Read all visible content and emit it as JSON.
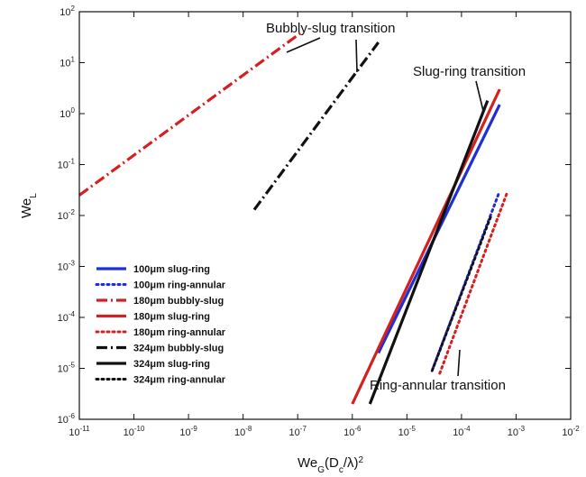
{
  "chart_data": {
    "type": "line",
    "xlabel": "We_G(D_c/λ)^2",
    "ylabel": "We_L",
    "x_scale": "log",
    "y_scale": "log",
    "xlim": [
      1e-11,
      0.01
    ],
    "ylim": [
      1e-06,
      100
    ],
    "x_ticks": [
      {
        "value": 1e-11,
        "base": "10",
        "exp": "-11"
      },
      {
        "value": 1e-10,
        "base": "10",
        "exp": "-10"
      },
      {
        "value": 1e-09,
        "base": "10",
        "exp": "-9"
      },
      {
        "value": 1e-08,
        "base": "10",
        "exp": "-8"
      },
      {
        "value": 1e-07,
        "base": "10",
        "exp": "-7"
      },
      {
        "value": 1e-06,
        "base": "10",
        "exp": "-6"
      },
      {
        "value": 1e-05,
        "base": "10",
        "exp": "-5"
      },
      {
        "value": 0.0001,
        "base": "10",
        "exp": "-4"
      },
      {
        "value": 0.001,
        "base": "10",
        "exp": "-3"
      },
      {
        "value": 0.01,
        "base": "10",
        "exp": "-2"
      }
    ],
    "y_ticks": [
      {
        "value": 1e-06,
        "base": "10",
        "exp": "-6"
      },
      {
        "value": 1e-05,
        "base": "10",
        "exp": "-5"
      },
      {
        "value": 0.0001,
        "base": "10",
        "exp": "-4"
      },
      {
        "value": 0.001,
        "base": "10",
        "exp": "-3"
      },
      {
        "value": 0.01,
        "base": "10",
        "exp": "-2"
      },
      {
        "value": 0.1,
        "base": "10",
        "exp": "-1"
      },
      {
        "value": 1,
        "base": "10",
        "exp": "0"
      },
      {
        "value": 10,
        "base": "10",
        "exp": "1"
      },
      {
        "value": 100,
        "base": "10",
        "exp": "2"
      }
    ],
    "grid": false,
    "legend_position": "bottom-left",
    "series": [
      {
        "name": "100μm slug-ring",
        "color": "#1f2fd6",
        "dash": "solid",
        "points": [
          [
            3e-06,
            2e-05
          ],
          [
            0.0005,
            1.5
          ]
        ]
      },
      {
        "name": "100μm ring-annular",
        "color": "#1f2fd6",
        "dash": "dot",
        "points": [
          [
            3e-05,
            1e-05
          ],
          [
            0.0005,
            0.03
          ]
        ]
      },
      {
        "name": "180μm bubbly-slug",
        "color": "#d42020",
        "dash": "dashdot",
        "points": [
          [
            1e-11,
            0.025
          ],
          [
            1.2e-07,
            40
          ]
        ]
      },
      {
        "name": "180μm slug-ring",
        "color": "#d42020",
        "dash": "solid",
        "points": [
          [
            1e-06,
            2e-06
          ],
          [
            0.0005,
            3
          ]
        ]
      },
      {
        "name": "180μm ring-annular",
        "color": "#d42020",
        "dash": "dot",
        "points": [
          [
            4e-05,
            8e-06
          ],
          [
            0.0007,
            0.03
          ]
        ]
      },
      {
        "name": "324μm bubbly-slug",
        "color": "#111111",
        "dash": "dashdot",
        "points": [
          [
            1.6e-08,
            0.013
          ],
          [
            3e-06,
            25
          ]
        ]
      },
      {
        "name": "324μm slug-ring",
        "color": "#111111",
        "dash": "solid",
        "points": [
          [
            2.1e-06,
            2e-06
          ],
          [
            0.0003,
            1.8
          ]
        ]
      },
      {
        "name": "324μm ring-annular",
        "color": "#111111",
        "dash": "dot",
        "points": [
          [
            2.9e-05,
            9e-06
          ],
          [
            0.00035,
            0.01
          ]
        ]
      }
    ],
    "annotations": [
      {
        "text": "Bubbly-slug transition"
      },
      {
        "text": "Slug-ring transition"
      },
      {
        "text": "Ring-annular transition"
      }
    ]
  }
}
